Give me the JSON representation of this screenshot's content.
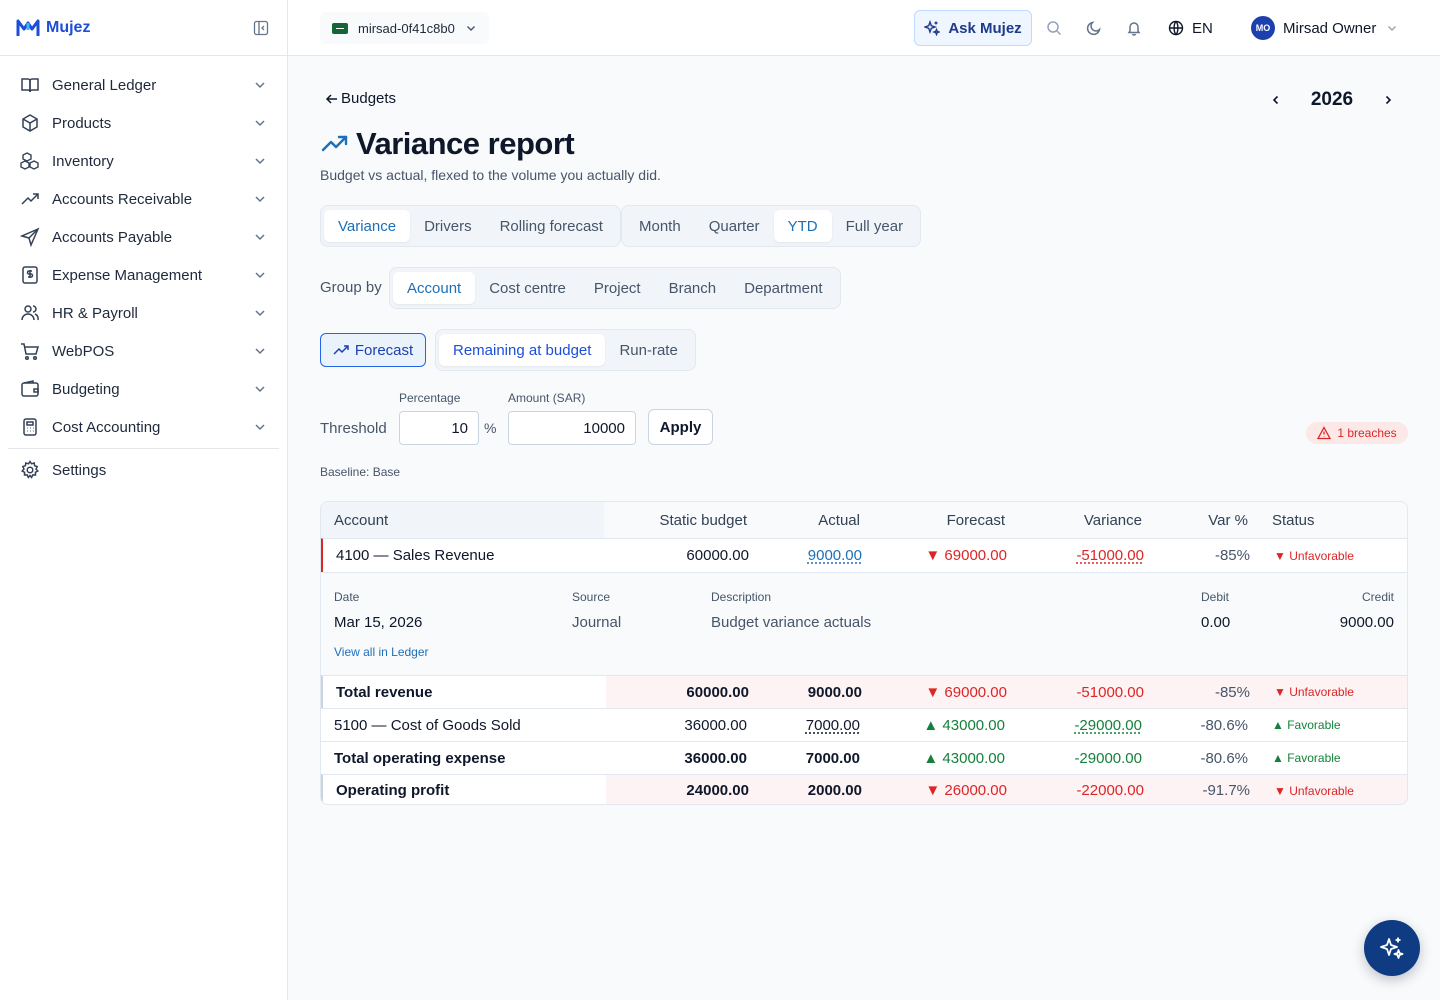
{
  "app": {
    "name": "Mujez",
    "brand_color": "#1d4ed8",
    "accent": "#1d6fb8"
  },
  "sidebar": {
    "items": [
      {
        "label": "General Ledger",
        "icon": "book-open-icon"
      },
      {
        "label": "Products",
        "icon": "box-icon"
      },
      {
        "label": "Inventory",
        "icon": "boxes-icon"
      },
      {
        "label": "Accounts Receivable",
        "icon": "trend-up-icon"
      },
      {
        "label": "Accounts Payable",
        "icon": "send-icon"
      },
      {
        "label": "Expense Management",
        "icon": "receipt-icon"
      },
      {
        "label": "HR & Payroll",
        "icon": "users-icon"
      },
      {
        "label": "WebPOS",
        "icon": "cart-icon"
      },
      {
        "label": "Budgeting",
        "icon": "wallet-icon"
      },
      {
        "label": "Cost Accounting",
        "icon": "calculator-icon"
      }
    ],
    "settings_label": "Settings"
  },
  "topbar": {
    "org": "mirsad-0f41c8b0",
    "ask_label": "Ask Mujez",
    "language": "EN",
    "user_initials": "MO",
    "user_name": "Mirsad Owner"
  },
  "page": {
    "back_label": "Budgets",
    "year": "2026",
    "title": "Variance report",
    "subtitle": "Budget vs actual, flexed to the volume you actually did.",
    "view_tabs": [
      "Variance",
      "Drivers",
      "Rolling forecast"
    ],
    "period_tabs": [
      "Month",
      "Quarter",
      "YTD",
      "Full year"
    ],
    "group_by_label": "Group by",
    "group_by": [
      "Account",
      "Cost centre",
      "Project",
      "Branch",
      "Department"
    ],
    "forecast_label": "Forecast",
    "mode_tabs": [
      "Remaining at budget",
      "Run-rate"
    ],
    "threshold_label": "Threshold",
    "percentage_label": "Percentage",
    "percentage_value": "10",
    "percent_sign": "%",
    "amount_label": "Amount (SAR)",
    "amount_value": "10000",
    "apply_label": "Apply",
    "breaches": "1 breaches",
    "baseline": "Baseline: Base"
  },
  "table": {
    "headers": [
      "Account",
      "Static budget",
      "Actual",
      "Forecast",
      "Variance",
      "Var %",
      "Status"
    ],
    "rows": [
      {
        "account": "4100 — Sales Revenue",
        "static": "60000.00",
        "actual": "9000.00",
        "forecast": "69000.00",
        "variance": "-51000.00",
        "var_pct": "-85%",
        "status": "Unfavorable"
      },
      {
        "account": "Total revenue",
        "static": "60000.00",
        "actual": "9000.00",
        "forecast": "69000.00",
        "variance": "-51000.00",
        "var_pct": "-85%",
        "status": "Unfavorable"
      },
      {
        "account": "5100 — Cost of Goods Sold",
        "static": "36000.00",
        "actual": "7000.00",
        "forecast": "43000.00",
        "variance": "-29000.00",
        "var_pct": "-80.6%",
        "status": "Favorable"
      },
      {
        "account": "Total operating expense",
        "static": "36000.00",
        "actual": "7000.00",
        "forecast": "43000.00",
        "variance": "-29000.00",
        "var_pct": "-80.6%",
        "status": "Favorable"
      },
      {
        "account": "Operating profit",
        "static": "24000.00",
        "actual": "2000.00",
        "forecast": "26000.00",
        "variance": "-22000.00",
        "var_pct": "-91.7%",
        "status": "Unfavorable"
      }
    ],
    "detail": {
      "headers": [
        "Date",
        "Source",
        "Description",
        "Debit",
        "Credit"
      ],
      "values": [
        "Mar 15, 2026",
        "Journal",
        "Budget variance actuals",
        "0.00",
        "9000.00"
      ],
      "view_all": "View all in Ledger"
    }
  },
  "status_colors": {
    "unfavorable": "#dc2626",
    "favorable": "#15803d"
  }
}
